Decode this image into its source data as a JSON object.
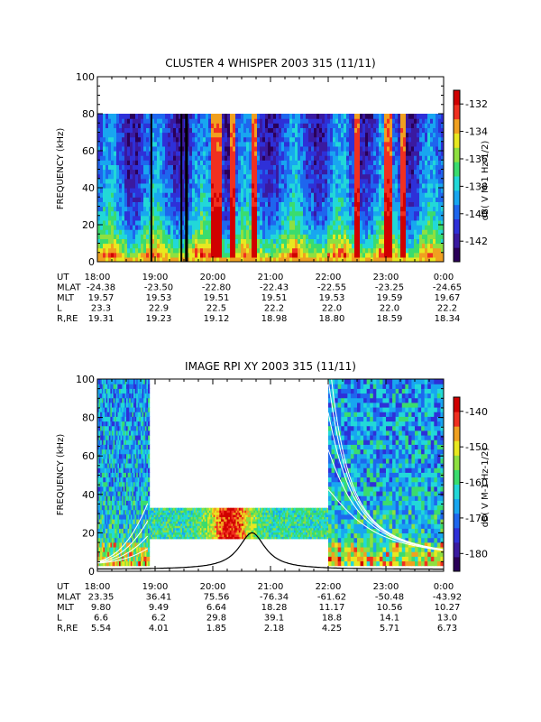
{
  "colors": {
    "colormap": [
      "#2a0058",
      "#3a1aa0",
      "#2e30d8",
      "#1e66ee",
      "#18a6f0",
      "#22d8d8",
      "#3adc6e",
      "#8ee040",
      "#e8e820",
      "#f0a020",
      "#f03020",
      "#d00000"
    ]
  },
  "chart_data": [
    {
      "type": "heatmap",
      "title": "CLUSTER 4 WHISPER 2003 315 (11/11)",
      "ylabel": "FREQUENCY (kHz)",
      "ylim": [
        0,
        100
      ],
      "y_ticks": [
        "0",
        "20",
        "40",
        "60",
        "80",
        "100"
      ],
      "y_tick_values": [
        0,
        20,
        40,
        60,
        80,
        100
      ],
      "data_frequency_range_khz": [
        0,
        80
      ],
      "x_hours": [
        18,
        24
      ],
      "colorbar": {
        "label": "dB( V M-1 Hz-1/2)",
        "range": [
          -143.5,
          -131
        ],
        "ticks": [
          "-132",
          "-134",
          "-136",
          "-138",
          "-140",
          "-142"
        ],
        "tick_values": [
          -132,
          -134,
          -136,
          -138,
          -140,
          -142
        ]
      },
      "data_gaps_hours": [
        [
          18.92,
          18.95
        ],
        [
          19.44,
          19.47
        ],
        [
          19.52,
          19.57
        ]
      ],
      "intense_emission_hours": [
        [
          19.95,
          20.15
        ],
        [
          20.3,
          20.4
        ],
        [
          20.65,
          20.75
        ],
        [
          22.45,
          22.55
        ],
        [
          22.95,
          23.1
        ],
        [
          23.25,
          23.35
        ]
      ],
      "ephemeris": {
        "labels": [
          "UT",
          "MLAT",
          "MLT",
          "L",
          "R,RE"
        ],
        "rows": [
          [
            "18:00",
            "19:00",
            "20:00",
            "21:00",
            "22:00",
            "23:00",
            "0:00"
          ],
          [
            "-24.38",
            "-23.50",
            "-22.80",
            "-22.43",
            "-22.55",
            "-23.25",
            "-24.65"
          ],
          [
            "19.57",
            "19.53",
            "19.51",
            "19.51",
            "19.53",
            "19.59",
            "19.67"
          ],
          [
            "23.3",
            "22.9",
            "22.5",
            "22.2",
            "22.0",
            "22.0",
            "22.2"
          ],
          [
            "19.31",
            "19.23",
            "19.12",
            "18.98",
            "18.80",
            "18.59",
            "18.34"
          ]
        ]
      }
    },
    {
      "type": "heatmap",
      "title": "IMAGE RPI XY 2003 315 (11/11)",
      "ylabel": "FREQUENCY (kHz)",
      "ylim": [
        0,
        100
      ],
      "y_ticks": [
        "0",
        "20",
        "40",
        "60",
        "80",
        "100"
      ],
      "y_tick_values": [
        0,
        20,
        40,
        60,
        80,
        100
      ],
      "x_hours": [
        18,
        24
      ],
      "colorbar": {
        "label": "dB( V M-1 Hz-1/2)",
        "range": [
          -185,
          -136
        ],
        "ticks": [
          "-140",
          "-150",
          "-160",
          "-170",
          "-180"
        ],
        "tick_values": [
          -140,
          -150,
          -160,
          -170,
          -180
        ]
      },
      "coverage_blocks": [
        {
          "hours": [
            18.0,
            18.9
          ],
          "freq_khz": [
            3,
            100
          ]
        },
        {
          "hours": [
            18.9,
            22.0
          ],
          "freq_khz": [
            17,
            33
          ]
        },
        {
          "hours": [
            22.0,
            24.0
          ],
          "freq_khz": [
            3,
            100
          ]
        }
      ],
      "white_curves": "plasma frequency traces",
      "black_curve": "local plasma frequency, peak ~20 kHz near 20:40 UT",
      "ephemeris": {
        "labels": [
          "UT",
          "MLAT",
          "MLT",
          "L",
          "R,RE"
        ],
        "rows": [
          [
            "18:00",
            "19:00",
            "20:00",
            "21:00",
            "22:00",
            "23:00",
            "0:00"
          ],
          [
            "23.35",
            "36.41",
            "75.56",
            "-76.34",
            "-61.62",
            "-50.48",
            "-43.92"
          ],
          [
            "9.80",
            "9.49",
            "6.64",
            "18.28",
            "11.17",
            "10.56",
            "10.27"
          ],
          [
            "6.6",
            "6.2",
            "29.8",
            "39.1",
            "18.8",
            "14.1",
            "13.0"
          ],
          [
            "5.54",
            "4.01",
            "1.85",
            "2.18",
            "4.25",
            "5.71",
            "6.73"
          ]
        ]
      }
    }
  ]
}
